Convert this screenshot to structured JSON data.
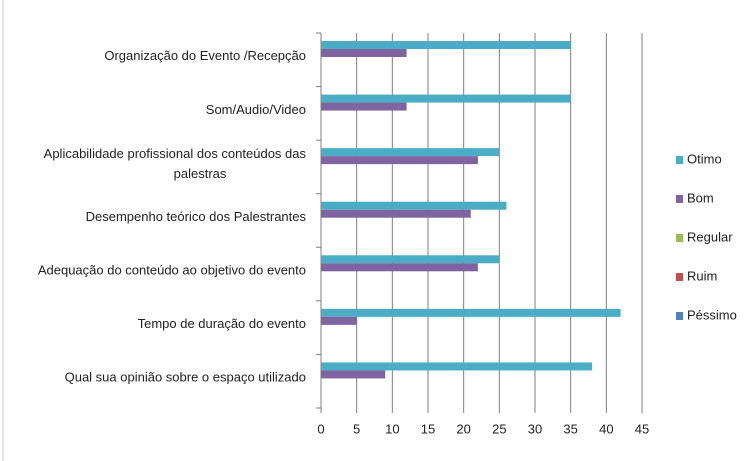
{
  "chart_data": {
    "type": "bar",
    "orientation": "horizontal",
    "categories": [
      "Organização do Evento /Recepção",
      "Som/Audio/Video",
      "Aplicabilidade profissional dos conteúdos das palestras",
      "Desempenho teórico dos Palestrantes",
      "Adequação do conteúdo ao objetivo do evento",
      "Tempo de duração do evento",
      "Qual sua opinião sobre o espaço utilizado"
    ],
    "series": [
      {
        "name": "Otimo",
        "color": "#4bacc6",
        "values": [
          35,
          35,
          25,
          26,
          25,
          42,
          38
        ]
      },
      {
        "name": "Bom",
        "color": "#8064a2",
        "values": [
          12,
          12,
          22,
          21,
          22,
          5,
          9
        ]
      },
      {
        "name": "Regular",
        "color": "#9bbb59",
        "values": [
          0,
          0,
          0,
          0,
          0,
          0,
          0
        ]
      },
      {
        "name": "Ruim",
        "color": "#c0504d",
        "values": [
          0,
          0,
          0,
          0,
          0,
          0,
          0
        ]
      },
      {
        "name": "Péssimo",
        "color": "#4f81bd",
        "values": [
          0,
          0,
          0,
          0,
          0,
          0,
          0
        ]
      }
    ],
    "xlim": [
      0,
      45
    ],
    "xticks": [
      0,
      5,
      10,
      15,
      20,
      25,
      30,
      35,
      40,
      45
    ],
    "grid": true,
    "legend": "right"
  }
}
